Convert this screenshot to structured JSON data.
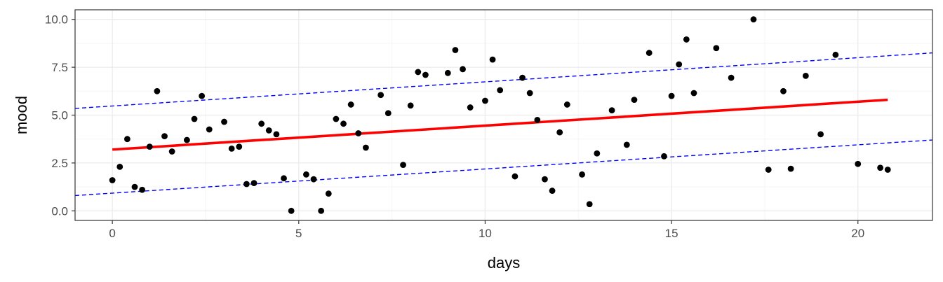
{
  "chart_data": {
    "type": "scatter",
    "xlabel": "days",
    "ylabel": "mood",
    "xlim": [
      -1,
      22
    ],
    "ylim": [
      -0.5,
      10.5
    ],
    "x_ticks": [
      0,
      5,
      10,
      15,
      20
    ],
    "y_ticks": [
      0,
      2.5,
      5,
      7.5,
      10
    ],
    "x_tick_labels": [
      "0",
      "5",
      "10",
      "15",
      "20"
    ],
    "y_tick_labels": [
      "0.0",
      "2.5",
      "5.0",
      "7.5",
      "10.0"
    ],
    "grid": true,
    "colors": {
      "points": "#000000",
      "fit_line": "#ff0000",
      "bound_lines": "#0000ff",
      "grid_major": "#ebebeb",
      "grid_minor": "#f5f5f5",
      "panel_border": "#333333"
    },
    "points": [
      {
        "x": 0.0,
        "y": 1.6
      },
      {
        "x": 0.2,
        "y": 2.3
      },
      {
        "x": 0.4,
        "y": 3.75
      },
      {
        "x": 0.6,
        "y": 1.25
      },
      {
        "x": 0.8,
        "y": 1.1
      },
      {
        "x": 1.0,
        "y": 3.35
      },
      {
        "x": 1.2,
        "y": 6.25
      },
      {
        "x": 1.4,
        "y": 3.9
      },
      {
        "x": 1.6,
        "y": 3.1
      },
      {
        "x": 2.0,
        "y": 3.7
      },
      {
        "x": 2.2,
        "y": 4.8
      },
      {
        "x": 2.4,
        "y": 6.0
      },
      {
        "x": 2.6,
        "y": 4.25
      },
      {
        "x": 3.0,
        "y": 4.65
      },
      {
        "x": 3.2,
        "y": 3.25
      },
      {
        "x": 3.4,
        "y": 3.35
      },
      {
        "x": 3.6,
        "y": 1.4
      },
      {
        "x": 3.8,
        "y": 1.45
      },
      {
        "x": 4.0,
        "y": 4.55
      },
      {
        "x": 4.2,
        "y": 4.2
      },
      {
        "x": 4.4,
        "y": 4.0
      },
      {
        "x": 4.6,
        "y": 1.7
      },
      {
        "x": 4.8,
        "y": 0.0
      },
      {
        "x": 5.2,
        "y": 1.9
      },
      {
        "x": 5.4,
        "y": 1.65
      },
      {
        "x": 5.6,
        "y": 0.0
      },
      {
        "x": 5.8,
        "y": 0.9
      },
      {
        "x": 6.0,
        "y": 4.8
      },
      {
        "x": 6.2,
        "y": 4.55
      },
      {
        "x": 6.4,
        "y": 5.55
      },
      {
        "x": 6.6,
        "y": 4.05
      },
      {
        "x": 6.8,
        "y": 3.3
      },
      {
        "x": 7.2,
        "y": 6.05
      },
      {
        "x": 7.4,
        "y": 5.1
      },
      {
        "x": 7.8,
        "y": 2.4
      },
      {
        "x": 8.0,
        "y": 5.5
      },
      {
        "x": 8.2,
        "y": 7.25
      },
      {
        "x": 8.4,
        "y": 7.1
      },
      {
        "x": 9.0,
        "y": 7.2
      },
      {
        "x": 9.2,
        "y": 8.4
      },
      {
        "x": 9.4,
        "y": 7.4
      },
      {
        "x": 9.6,
        "y": 5.4
      },
      {
        "x": 10.0,
        "y": 5.75
      },
      {
        "x": 10.2,
        "y": 7.9
      },
      {
        "x": 10.4,
        "y": 6.3
      },
      {
        "x": 10.8,
        "y": 1.8
      },
      {
        "x": 11.0,
        "y": 6.95
      },
      {
        "x": 11.2,
        "y": 6.15
      },
      {
        "x": 11.4,
        "y": 4.75
      },
      {
        "x": 11.6,
        "y": 1.65
      },
      {
        "x": 11.8,
        "y": 1.05
      },
      {
        "x": 12.0,
        "y": 4.1
      },
      {
        "x": 12.2,
        "y": 5.55
      },
      {
        "x": 12.6,
        "y": 1.9
      },
      {
        "x": 12.8,
        "y": 0.35
      },
      {
        "x": 13.0,
        "y": 3.0
      },
      {
        "x": 13.4,
        "y": 5.25
      },
      {
        "x": 13.8,
        "y": 3.45
      },
      {
        "x": 14.0,
        "y": 5.8
      },
      {
        "x": 14.4,
        "y": 8.25
      },
      {
        "x": 14.8,
        "y": 2.85
      },
      {
        "x": 15.0,
        "y": 6.0
      },
      {
        "x": 15.2,
        "y": 7.65
      },
      {
        "x": 15.4,
        "y": 8.95
      },
      {
        "x": 15.6,
        "y": 6.15
      },
      {
        "x": 16.2,
        "y": 8.5
      },
      {
        "x": 16.6,
        "y": 6.95
      },
      {
        "x": 17.2,
        "y": 10.0
      },
      {
        "x": 17.6,
        "y": 2.15
      },
      {
        "x": 18.0,
        "y": 6.25
      },
      {
        "x": 18.2,
        "y": 2.2
      },
      {
        "x": 18.6,
        "y": 7.05
      },
      {
        "x": 19.0,
        "y": 4.0
      },
      {
        "x": 19.4,
        "y": 8.15
      },
      {
        "x": 20.0,
        "y": 2.45
      },
      {
        "x": 20.6,
        "y": 2.25
      },
      {
        "x": 20.8,
        "y": 2.15
      }
    ],
    "fit_line": {
      "x": [
        0,
        20.8
      ],
      "y": [
        3.2,
        5.8
      ]
    },
    "upper_bound_line": {
      "x": [
        -1,
        22
      ],
      "y": [
        5.35,
        8.25
      ]
    },
    "lower_bound_line": {
      "x": [
        -1,
        22
      ],
      "y": [
        0.8,
        3.7
      ]
    }
  }
}
